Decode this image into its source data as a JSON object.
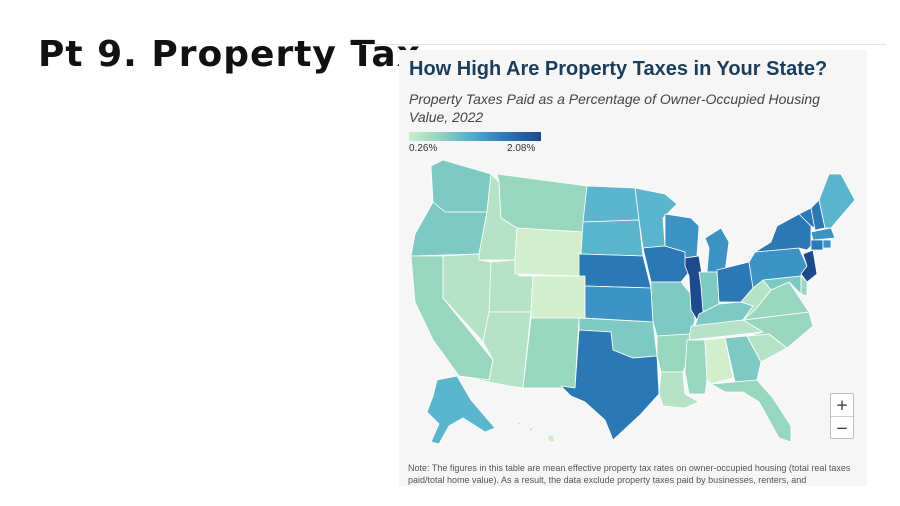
{
  "slide": {
    "title": "Pt 9.  Property Tax"
  },
  "map": {
    "title": "How High Are Property Taxes in Your State?",
    "subtitle": "Property Taxes Paid as a Percentage of Owner-Occupied Housing Value, 2022",
    "legend": {
      "min_label": "0.26%",
      "max_label": "2.08%",
      "min_color": "#cfeccd",
      "max_color": "#1c4a8c"
    },
    "zoom": {
      "in_label": "+",
      "out_label": "−"
    },
    "note": "Note: The figures in this table are mean effective property tax rates on owner-occupied housing (total real taxes paid/total home value). As a result, the data exclude property taxes paid by businesses, renters, and",
    "color_levels": {
      "lowest": "#d2eecd",
      "low": "#b6e3c7",
      "mid_low": "#99d6c0",
      "mid": "#7ec9c4",
      "mid_high": "#5bb5cc",
      "high": "#3d94c4",
      "higher": "#2b78b4",
      "highest": "#1c4a8c"
    },
    "states": [
      {
        "name": "Washington",
        "level": "mid"
      },
      {
        "name": "Oregon",
        "level": "mid"
      },
      {
        "name": "California",
        "level": "mid_low"
      },
      {
        "name": "Idaho",
        "level": "low"
      },
      {
        "name": "Nevada",
        "level": "low"
      },
      {
        "name": "Utah",
        "level": "low"
      },
      {
        "name": "Arizona",
        "level": "low"
      },
      {
        "name": "Montana",
        "level": "mid_low"
      },
      {
        "name": "Wyoming",
        "level": "lowest"
      },
      {
        "name": "Colorado",
        "level": "lowest"
      },
      {
        "name": "New Mexico",
        "level": "mid_low"
      },
      {
        "name": "North Dakota",
        "level": "mid_high"
      },
      {
        "name": "South Dakota",
        "level": "mid_high"
      },
      {
        "name": "Nebraska",
        "level": "higher"
      },
      {
        "name": "Kansas",
        "level": "high"
      },
      {
        "name": "Oklahoma",
        "level": "mid"
      },
      {
        "name": "Texas",
        "level": "higher"
      },
      {
        "name": "Minnesota",
        "level": "mid_high"
      },
      {
        "name": "Iowa",
        "level": "higher"
      },
      {
        "name": "Missouri",
        "level": "mid"
      },
      {
        "name": "Arkansas",
        "level": "mid_low"
      },
      {
        "name": "Louisiana",
        "level": "low"
      },
      {
        "name": "Wisconsin",
        "level": "high"
      },
      {
        "name": "Illinois",
        "level": "highest"
      },
      {
        "name": "Michigan",
        "level": "high"
      },
      {
        "name": "Indiana",
        "level": "mid"
      },
      {
        "name": "Ohio",
        "level": "higher"
      },
      {
        "name": "Kentucky",
        "level": "mid"
      },
      {
        "name": "Tennessee",
        "level": "low"
      },
      {
        "name": "Mississippi",
        "level": "mid_low"
      },
      {
        "name": "Alabama",
        "level": "lowest"
      },
      {
        "name": "Georgia",
        "level": "mid"
      },
      {
        "name": "Florida",
        "level": "mid_low"
      },
      {
        "name": "South Carolina",
        "level": "low"
      },
      {
        "name": "North Carolina",
        "level": "mid_low"
      },
      {
        "name": "Virginia",
        "level": "mid_low"
      },
      {
        "name": "West Virginia",
        "level": "low"
      },
      {
        "name": "Pennsylvania",
        "level": "high"
      },
      {
        "name": "New York",
        "level": "higher"
      },
      {
        "name": "Vermont",
        "level": "higher"
      },
      {
        "name": "New Hampshire",
        "level": "higher"
      },
      {
        "name": "Maine",
        "level": "mid_high"
      },
      {
        "name": "Massachusetts",
        "level": "high"
      },
      {
        "name": "Connecticut",
        "level": "higher"
      },
      {
        "name": "Rhode Island",
        "level": "high"
      },
      {
        "name": "New Jersey",
        "level": "highest"
      },
      {
        "name": "Delaware",
        "level": "mid_low"
      },
      {
        "name": "Maryland",
        "level": "mid"
      },
      {
        "name": "Alaska",
        "level": "mid_high"
      },
      {
        "name": "Hawaii",
        "level": "lowest"
      }
    ]
  }
}
